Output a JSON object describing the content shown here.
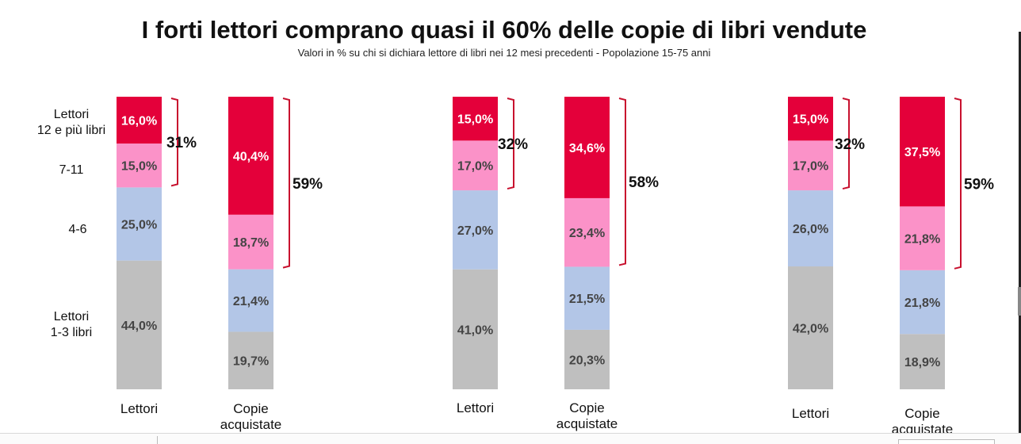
{
  "title": "I forti lettori comprano quasi il 60% delle copie di libri vendute",
  "subtitle": "Valori in % su chi si dichiara lettore di libri nei 12 mesi precedenti - Popolazione 15-75 anni",
  "row_labels": {
    "r12": [
      "Lettori",
      "12 e più libri"
    ],
    "r711": [
      "7-11"
    ],
    "r46": [
      "4-6"
    ],
    "r13": [
      "Lettori",
      "1-3 libri"
    ]
  },
  "colors": {
    "12+": "#e4003a",
    "7-11": "#fb92c8",
    "4-6": "#b3c6e7",
    "1-3": "#bfbfbf",
    "bracket": "#c8102e"
  },
  "chart_data": [
    {
      "type": "bar",
      "stacked": true,
      "categories": [
        "Lettori",
        "Copie acquistate"
      ],
      "series": [
        {
          "values": [
            44.0,
            19.7
          ],
          "labels": [
            "44,0%",
            "19,7%"
          ]
        },
        {
          "values": [
            25.0,
            21.4
          ],
          "labels": [
            "25,0%",
            "21,4%"
          ]
        },
        {
          "values": [
            15.0,
            18.7
          ],
          "labels": [
            "15,0%",
            "18,7%"
          ]
        },
        {
          "values": [
            16.0,
            40.4
          ],
          "labels": [
            "16,0%",
            "40,4%"
          ]
        }
      ],
      "brackets": [
        "31%",
        "59%"
      ]
    },
    {
      "type": "bar",
      "stacked": true,
      "categories": [
        "Lettori",
        "Copie acquistate"
      ],
      "series": [
        {
          "values": [
            41.0,
            20.3
          ],
          "labels": [
            "41,0%",
            "20,3%"
          ]
        },
        {
          "values": [
            27.0,
            21.5
          ],
          "labels": [
            "27,0%",
            "21,5%"
          ]
        },
        {
          "values": [
            17.0,
            23.4
          ],
          "labels": [
            "17,0%",
            "23,4%"
          ]
        },
        {
          "values": [
            15.0,
            34.6
          ],
          "labels": [
            "15,0%",
            "34,6%"
          ]
        }
      ],
      "brackets": [
        "32%",
        "58%"
      ]
    },
    {
      "type": "bar",
      "stacked": true,
      "categories": [
        "Lettori",
        "Copie acquistate"
      ],
      "series": [
        {
          "values": [
            42.0,
            18.9
          ],
          "labels": [
            "42,0%",
            "18,9%"
          ]
        },
        {
          "values": [
            26.0,
            21.8
          ],
          "labels": [
            "26,0%",
            "21,8%"
          ]
        },
        {
          "values": [
            17.0,
            21.8
          ],
          "labels": [
            "17,0%",
            "21,8%"
          ]
        },
        {
          "values": [
            15.0,
            37.5
          ],
          "labels": [
            "15,0%",
            "37,5%"
          ]
        }
      ],
      "brackets": [
        "32%",
        "59%"
      ]
    }
  ]
}
